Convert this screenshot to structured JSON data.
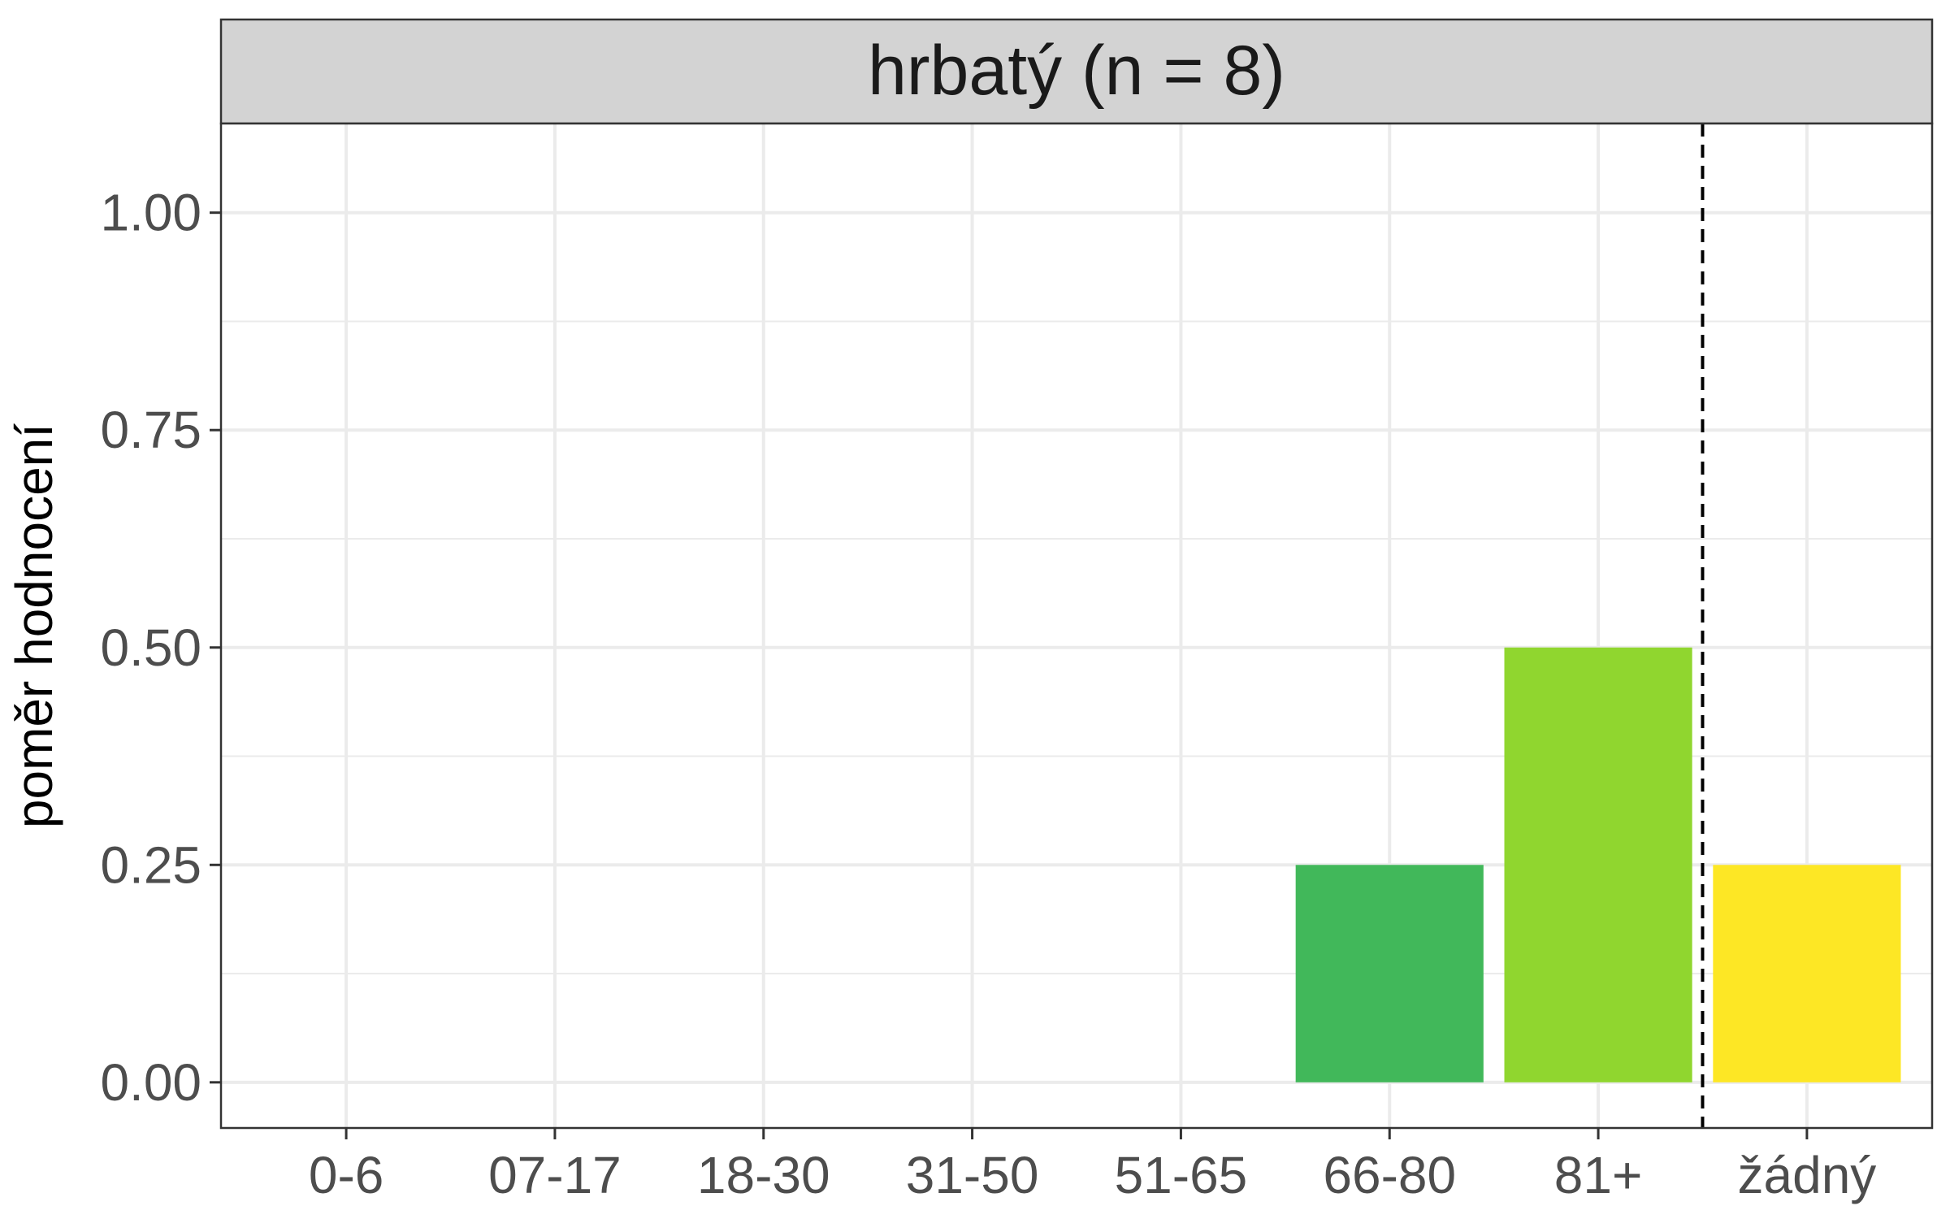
{
  "chart_data": {
    "type": "bar",
    "facet_title": "hrbatý (n = 8)",
    "ylabel": "poměr hodnocení",
    "xlabel": "",
    "categories": [
      "0-6",
      "07-17",
      "18-30",
      "31-50",
      "51-65",
      "66-80",
      "81+",
      "žádný"
    ],
    "values": [
      0,
      0,
      0,
      0,
      0,
      0.25,
      0.5,
      0.25
    ],
    "bar_colors": [
      "#440154",
      "#46337e",
      "#365c8d",
      "#277f8e",
      "#1fa187",
      "#41b85a",
      "#90d62f",
      "#fde725"
    ],
    "ylim": [
      -0.0525,
      1.1025
    ],
    "y_ticks": [
      0,
      0.25,
      0.5,
      0.75,
      1.0
    ],
    "y_tick_labels": [
      "0.00",
      "0.25",
      "0.50",
      "0.75",
      "1.00"
    ],
    "y_minor_ticks": [
      0.125,
      0.375,
      0.625,
      0.875
    ],
    "grid": true,
    "legend": "none",
    "reference_line": {
      "between_categories": [
        "81+",
        "žádný"
      ],
      "style": "dashed",
      "color": "#000000"
    },
    "colors": {
      "strip_background": "#d3d3d3",
      "grid": "#ebebeb",
      "panel_border": "#333333",
      "tick_label": "#4d4d4d"
    }
  }
}
